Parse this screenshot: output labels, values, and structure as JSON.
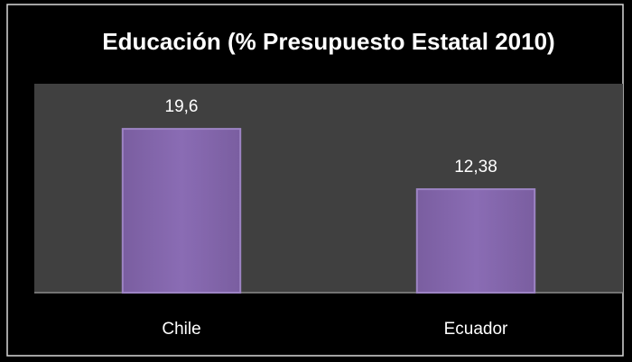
{
  "chart_data": {
    "type": "bar",
    "title": "Educación (% Presupuesto Estatal 2010)",
    "categories": [
      "Chile",
      "Ecuador"
    ],
    "values": [
      19.6,
      12.38
    ],
    "value_labels": [
      "19,6",
      "12,38"
    ],
    "color": "#8064a2",
    "ylim": [
      0,
      25
    ]
  }
}
